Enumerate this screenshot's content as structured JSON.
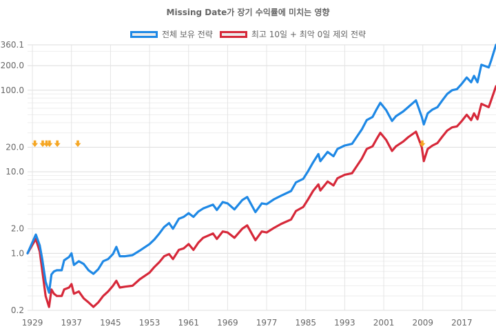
{
  "chart_data": {
    "type": "line",
    "title": "Missing Date가 장기 수익률에 미치는 영향",
    "xlabel": "",
    "ylabel": "",
    "y_scale": "log",
    "ylim": [
      0.2,
      360.1
    ],
    "xlim": [
      1928,
      2024
    ],
    "legend_position": "top",
    "grid": true,
    "y_ticks": [
      "360.1",
      "200.0",
      "100.0",
      "20.0",
      "10.0",
      "2.0",
      "1.0",
      "0.2"
    ],
    "x_ticks": [
      "1929",
      "1937",
      "1945",
      "1953",
      "1961",
      "1969",
      "1977",
      "1985",
      "1993",
      "2001",
      "2009",
      "2017"
    ],
    "series": [
      {
        "name": "전체 보유 전략",
        "color": "#1e88e5",
        "points": [
          [
            1928,
            1.0
          ],
          [
            1929.7,
            1.7
          ],
          [
            1930.5,
            1.25
          ],
          [
            1931,
            0.85
          ],
          [
            1931.7,
            0.45
          ],
          [
            1932.4,
            0.33
          ],
          [
            1932.9,
            0.55
          ],
          [
            1933.4,
            0.6
          ],
          [
            1934,
            0.62
          ],
          [
            1935,
            0.62
          ],
          [
            1935.5,
            0.82
          ],
          [
            1936.5,
            0.9
          ],
          [
            1937,
            1.0
          ],
          [
            1937.5,
            0.72
          ],
          [
            1938.5,
            0.8
          ],
          [
            1939.5,
            0.74
          ],
          [
            1940.5,
            0.62
          ],
          [
            1941.5,
            0.56
          ],
          [
            1942.5,
            0.64
          ],
          [
            1943.5,
            0.8
          ],
          [
            1944.5,
            0.85
          ],
          [
            1945.5,
            0.98
          ],
          [
            1946.2,
            1.2
          ],
          [
            1946.9,
            0.92
          ],
          [
            1948,
            0.92
          ],
          [
            1949.5,
            0.95
          ],
          [
            1951,
            1.08
          ],
          [
            1953,
            1.3
          ],
          [
            1954,
            1.48
          ],
          [
            1955,
            1.75
          ],
          [
            1956,
            2.1
          ],
          [
            1957,
            2.35
          ],
          [
            1957.8,
            2.0
          ],
          [
            1959,
            2.65
          ],
          [
            1960,
            2.8
          ],
          [
            1961,
            3.1
          ],
          [
            1962,
            2.8
          ],
          [
            1963,
            3.25
          ],
          [
            1964,
            3.55
          ],
          [
            1966,
            3.95
          ],
          [
            1966.8,
            3.4
          ],
          [
            1968,
            4.25
          ],
          [
            1969,
            4.1
          ],
          [
            1970.4,
            3.45
          ],
          [
            1972,
            4.5
          ],
          [
            1973,
            4.9
          ],
          [
            1974.7,
            3.2
          ],
          [
            1976,
            4.1
          ],
          [
            1977,
            4.0
          ],
          [
            1978.5,
            4.6
          ],
          [
            1980,
            5.1
          ],
          [
            1982,
            5.8
          ],
          [
            1983,
            7.4
          ],
          [
            1984.5,
            8.2
          ],
          [
            1985.5,
            10.2
          ],
          [
            1986.5,
            13.0
          ],
          [
            1987.6,
            16.5
          ],
          [
            1988,
            13.5
          ],
          [
            1989.5,
            17.5
          ],
          [
            1990.7,
            15.5
          ],
          [
            1991.5,
            19.0
          ],
          [
            1993,
            21.0
          ],
          [
            1994.5,
            22.0
          ],
          [
            1995.5,
            27.0
          ],
          [
            1996.5,
            33.0
          ],
          [
            1997.5,
            43.0
          ],
          [
            1998.7,
            47.0
          ],
          [
            1999.5,
            58.0
          ],
          [
            2000.3,
            70.0
          ],
          [
            2001.5,
            57.0
          ],
          [
            2002.7,
            42.0
          ],
          [
            2003.5,
            48.0
          ],
          [
            2005,
            55.0
          ],
          [
            2006,
            62.0
          ],
          [
            2007.6,
            75.0
          ],
          [
            2008.8,
            47.0
          ],
          [
            2009.2,
            38.0
          ],
          [
            2010,
            52.0
          ],
          [
            2011,
            58.0
          ],
          [
            2012,
            62.0
          ],
          [
            2013,
            75.0
          ],
          [
            2014,
            90.0
          ],
          [
            2015,
            100.0
          ],
          [
            2016,
            103.0
          ],
          [
            2017,
            120.0
          ],
          [
            2018,
            143.0
          ],
          [
            2018.9,
            125.0
          ],
          [
            2019.5,
            150.0
          ],
          [
            2020.2,
            125.0
          ],
          [
            2021,
            205.0
          ],
          [
            2022.5,
            190.0
          ],
          [
            2023,
            230.0
          ],
          [
            2024,
            360.1
          ]
        ]
      },
      {
        "name": "최고 10일 + 최악 0일 제외 전략",
        "color": "#d62839",
        "points": [
          [
            1928,
            1.0
          ],
          [
            1929.7,
            1.5
          ],
          [
            1930.5,
            1.05
          ],
          [
            1931,
            0.62
          ],
          [
            1931.7,
            0.3
          ],
          [
            1932.4,
            0.22
          ],
          [
            1932.9,
            0.36
          ],
          [
            1933.4,
            0.32
          ],
          [
            1934,
            0.3
          ],
          [
            1935,
            0.3
          ],
          [
            1935.5,
            0.36
          ],
          [
            1936.5,
            0.38
          ],
          [
            1937,
            0.42
          ],
          [
            1937.5,
            0.32
          ],
          [
            1938.5,
            0.34
          ],
          [
            1939.5,
            0.28
          ],
          [
            1940.5,
            0.25
          ],
          [
            1941.5,
            0.22
          ],
          [
            1942.5,
            0.25
          ],
          [
            1943.5,
            0.3
          ],
          [
            1944.5,
            0.34
          ],
          [
            1945.5,
            0.4
          ],
          [
            1946.2,
            0.46
          ],
          [
            1946.9,
            0.38
          ],
          [
            1948,
            0.39
          ],
          [
            1949.5,
            0.4
          ],
          [
            1951,
            0.48
          ],
          [
            1953,
            0.58
          ],
          [
            1954,
            0.68
          ],
          [
            1955,
            0.78
          ],
          [
            1956,
            0.92
          ],
          [
            1957,
            0.98
          ],
          [
            1957.8,
            0.85
          ],
          [
            1959,
            1.1
          ],
          [
            1960,
            1.15
          ],
          [
            1961,
            1.3
          ],
          [
            1962,
            1.1
          ],
          [
            1963,
            1.35
          ],
          [
            1964,
            1.55
          ],
          [
            1966,
            1.75
          ],
          [
            1966.8,
            1.5
          ],
          [
            1968,
            1.85
          ],
          [
            1969,
            1.8
          ],
          [
            1970.4,
            1.55
          ],
          [
            1972,
            2.0
          ],
          [
            1973,
            2.2
          ],
          [
            1974.7,
            1.45
          ],
          [
            1976,
            1.85
          ],
          [
            1977,
            1.8
          ],
          [
            1978.5,
            2.05
          ],
          [
            1980,
            2.3
          ],
          [
            1982,
            2.6
          ],
          [
            1983,
            3.3
          ],
          [
            1984.5,
            3.7
          ],
          [
            1985.5,
            4.6
          ],
          [
            1986.5,
            5.8
          ],
          [
            1987.6,
            7.0
          ],
          [
            1988,
            5.9
          ],
          [
            1989.5,
            7.6
          ],
          [
            1990.7,
            6.8
          ],
          [
            1991.5,
            8.3
          ],
          [
            1993,
            9.2
          ],
          [
            1994.5,
            9.6
          ],
          [
            1995.5,
            11.8
          ],
          [
            1996.5,
            14.5
          ],
          [
            1997.5,
            19.0
          ],
          [
            1998.7,
            20.5
          ],
          [
            1999.5,
            25.0
          ],
          [
            2000.3,
            30.0
          ],
          [
            2001.5,
            24.5
          ],
          [
            2002.7,
            18.0
          ],
          [
            2003.5,
            20.5
          ],
          [
            2005,
            23.5
          ],
          [
            2006,
            26.5
          ],
          [
            2007.6,
            31.0
          ],
          [
            2008.8,
            20.0
          ],
          [
            2009.2,
            13.5
          ],
          [
            2010,
            19.0
          ],
          [
            2011,
            21.0
          ],
          [
            2012,
            22.5
          ],
          [
            2013,
            27.0
          ],
          [
            2014,
            32.0
          ],
          [
            2015,
            35.0
          ],
          [
            2016,
            36.0
          ],
          [
            2017,
            42.0
          ],
          [
            2018,
            50.0
          ],
          [
            2018.9,
            43.0
          ],
          [
            2019.5,
            52.0
          ],
          [
            2020.2,
            44.0
          ],
          [
            2021,
            68.0
          ],
          [
            2022.5,
            62.0
          ],
          [
            2023,
            75.0
          ],
          [
            2024,
            112.0
          ]
        ]
      }
    ],
    "markers": {
      "color": "#f5a623",
      "y": 22,
      "x": [
        1929.5,
        1931.1,
        1931.9,
        1932.5,
        1934.1,
        1938.3,
        2008.9
      ]
    }
  }
}
